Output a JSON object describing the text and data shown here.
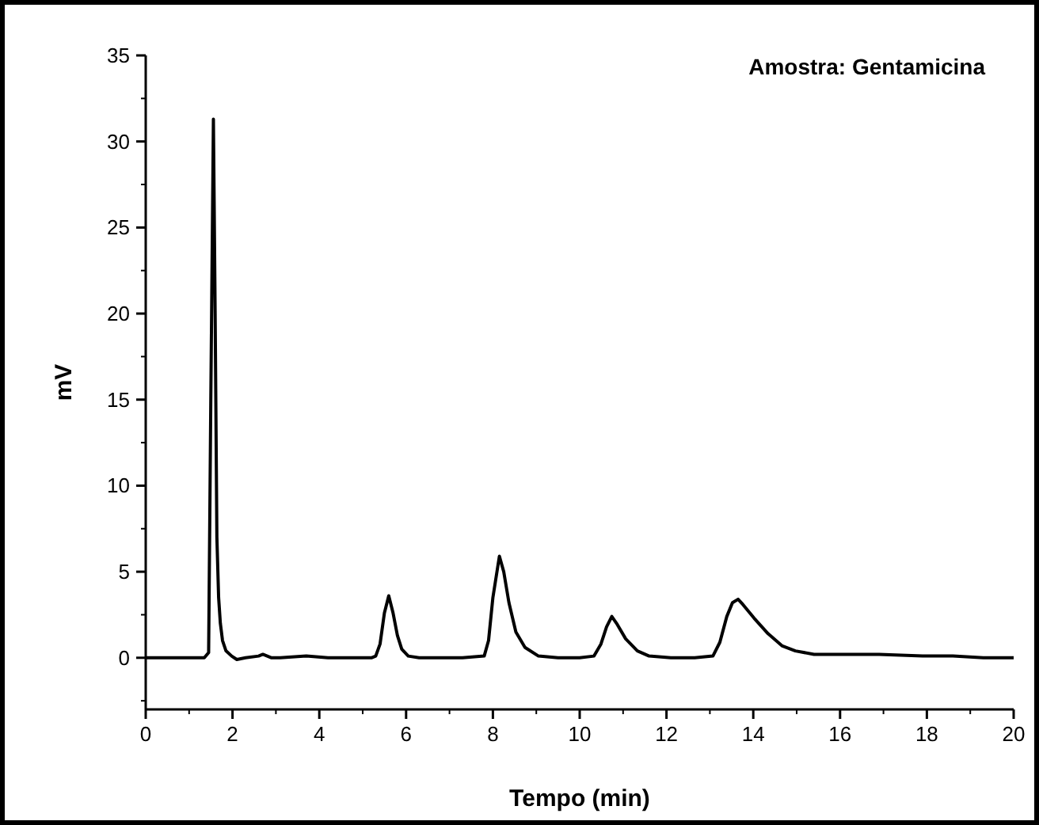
{
  "chart_data": {
    "type": "line",
    "xlabel": "Tempo (min)",
    "ylabel": "mV",
    "annotations": [
      "Amostra: Gentamicina"
    ],
    "xlim": [
      0,
      20
    ],
    "ylim": [
      -3,
      35
    ],
    "xticks": [
      0,
      2,
      4,
      6,
      8,
      10,
      12,
      14,
      16,
      18,
      20
    ],
    "yticks": [
      0,
      5,
      10,
      15,
      20,
      25,
      30,
      35
    ],
    "grid": false,
    "series": [
      {
        "color": "#000000",
        "x": [
          0,
          0.5,
          1.0,
          1.35,
          1.45,
          1.5,
          1.56,
          1.6,
          1.64,
          1.68,
          1.72,
          1.77,
          1.85,
          1.98,
          2.1,
          2.3,
          2.6,
          2.7,
          2.9,
          3.1,
          3.7,
          4.2,
          4.7,
          5.2,
          5.3,
          5.4,
          5.5,
          5.6,
          5.7,
          5.8,
          5.9,
          6.05,
          6.3,
          6.8,
          7.3,
          7.8,
          7.9,
          8.0,
          8.15,
          8.25,
          8.37,
          8.53,
          8.74,
          9.05,
          9.5,
          10.0,
          10.33,
          10.49,
          10.62,
          10.74,
          10.85,
          11.06,
          11.33,
          11.6,
          12.1,
          12.65,
          13.07,
          13.23,
          13.39,
          13.52,
          13.65,
          13.76,
          14.02,
          14.34,
          14.66,
          14.97,
          15.4,
          15.8,
          16.9,
          17.9,
          18.6,
          19.3,
          20
        ],
        "values": [
          0,
          0,
          0,
          0,
          0.3,
          15,
          31.3,
          20,
          7,
          3.5,
          2.0,
          1.0,
          0.4,
          0.1,
          -0.1,
          0,
          0.1,
          0.2,
          0,
          0,
          0.1,
          0,
          0,
          0,
          0.1,
          0.8,
          2.6,
          3.6,
          2.6,
          1.3,
          0.5,
          0.1,
          0,
          0,
          0,
          0.1,
          1.0,
          3.5,
          5.9,
          5.0,
          3.2,
          1.5,
          0.6,
          0.1,
          0,
          0,
          0.1,
          0.8,
          1.8,
          2.4,
          2.0,
          1.1,
          0.4,
          0.1,
          0,
          0,
          0.1,
          0.9,
          2.4,
          3.2,
          3.4,
          3.1,
          2.3,
          1.4,
          0.7,
          0.4,
          0.2,
          0.2,
          0.2,
          0.1,
          0.1,
          0.0,
          0
        ]
      }
    ]
  }
}
